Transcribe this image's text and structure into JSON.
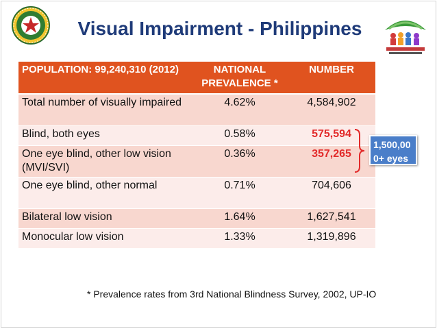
{
  "slide": {
    "title": "Visual Impairment - Philippines",
    "footnote": "* Prevalence rates from 3rd National Blindness Survey, 2002, UP-IO"
  },
  "table": {
    "headers": [
      "POPULATION: 99,240,310 (2012)",
      "NATIONAL PREVALENCE *",
      "NUMBER"
    ],
    "rows": [
      {
        "label": "Total number of visually impaired",
        "prevalence": "4.62%",
        "number": "4,584,902"
      },
      {
        "label": "Blind, both eyes",
        "prevalence": "0.58%",
        "number": "575,594"
      },
      {
        "label": "One eye blind, other low vision (MVI/SVI)",
        "prevalence": "0.36%",
        "number": "357,265"
      },
      {
        "label": "One eye blind, other normal",
        "prevalence": "0.71%",
        "number": "704,606"
      },
      {
        "label": "Bilateral low vision",
        "prevalence": "1.64%",
        "number": "1,627,541"
      },
      {
        "label": "Monocular low vision",
        "prevalence": "1.33%",
        "number": "1,319,896"
      }
    ]
  },
  "callout": {
    "text": "1,500,00 0+ eyes"
  },
  "colors": {
    "title": "#1f3b79",
    "header_bg": "#e0531f",
    "row_odd": "#f8d7cf",
    "row_even": "#fcecea",
    "highlight_number": "#e22a2a",
    "callout_bg": "#4a7ec9"
  }
}
